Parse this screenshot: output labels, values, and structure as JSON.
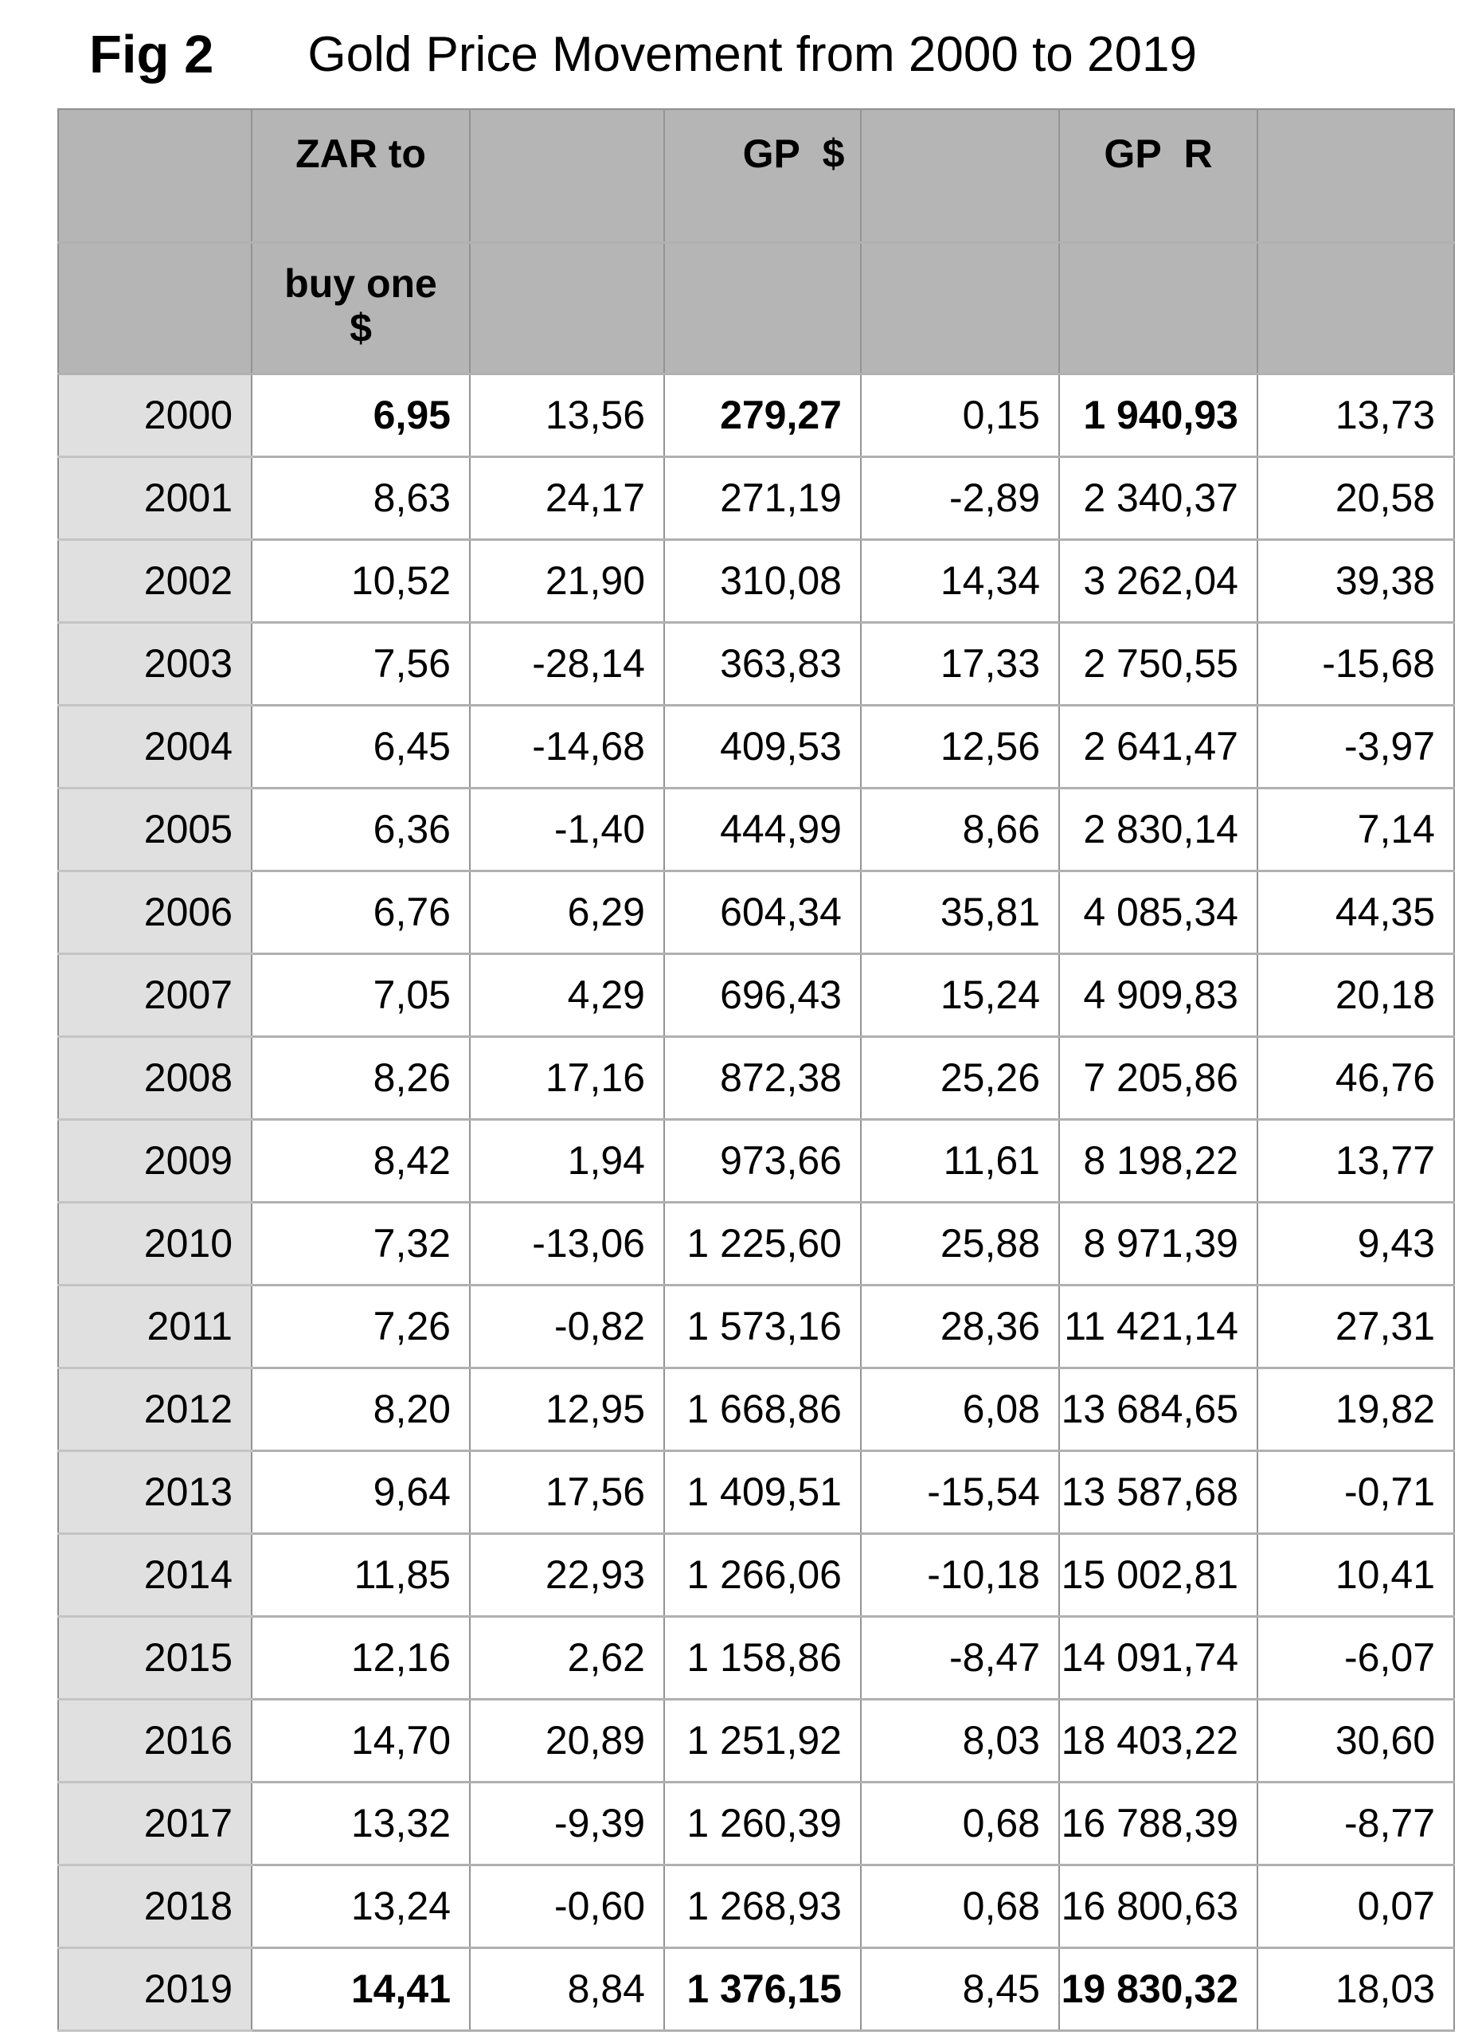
{
  "figure_label": "Fig 2",
  "title": "Gold Price Movement from 2000 to 2019",
  "colors": {
    "header_bg": "#b5b5b5",
    "year_column_bg": "#e0e0e0",
    "grid_vertical": "#939393",
    "grid_horizontal": "#b0b0b0",
    "text": "#000000",
    "page_bg": "#ffffff"
  },
  "table": {
    "header_row1": [
      "",
      "ZAR to",
      "",
      "GP  $",
      "",
      "GP  R",
      ""
    ],
    "header_row2": [
      "",
      "buy one\n$",
      "",
      "",
      "",
      "",
      ""
    ],
    "rows": [
      {
        "year": "2000",
        "cells": [
          "6,95",
          "13,56",
          "279,27",
          "0,15",
          "1 940,93",
          "13,73"
        ],
        "bold_cells": [
          0,
          2,
          4
        ]
      },
      {
        "year": "2001",
        "cells": [
          "8,63",
          "24,17",
          "271,19",
          "-2,89",
          "2 340,37",
          "20,58"
        ],
        "bold_cells": []
      },
      {
        "year": "2002",
        "cells": [
          "10,52",
          "21,90",
          "310,08",
          "14,34",
          "3 262,04",
          "39,38"
        ],
        "bold_cells": []
      },
      {
        "year": "2003",
        "cells": [
          "7,56",
          "-28,14",
          "363,83",
          "17,33",
          "2 750,55",
          "-15,68"
        ],
        "bold_cells": []
      },
      {
        "year": "2004",
        "cells": [
          "6,45",
          "-14,68",
          "409,53",
          "12,56",
          "2 641,47",
          "-3,97"
        ],
        "bold_cells": []
      },
      {
        "year": "2005",
        "cells": [
          "6,36",
          "-1,40",
          "444,99",
          "8,66",
          "2 830,14",
          "7,14"
        ],
        "bold_cells": []
      },
      {
        "year": "2006",
        "cells": [
          "6,76",
          "6,29",
          "604,34",
          "35,81",
          "4 085,34",
          "44,35"
        ],
        "bold_cells": []
      },
      {
        "year": "2007",
        "cells": [
          "7,05",
          "4,29",
          "696,43",
          "15,24",
          "4 909,83",
          "20,18"
        ],
        "bold_cells": []
      },
      {
        "year": "2008",
        "cells": [
          "8,26",
          "17,16",
          "872,38",
          "25,26",
          "7 205,86",
          "46,76"
        ],
        "bold_cells": []
      },
      {
        "year": "2009",
        "cells": [
          "8,42",
          "1,94",
          "973,66",
          "11,61",
          "8 198,22",
          "13,77"
        ],
        "bold_cells": []
      },
      {
        "year": "2010",
        "cells": [
          "7,32",
          "-13,06",
          "1 225,60",
          "25,88",
          "8 971,39",
          "9,43"
        ],
        "bold_cells": []
      },
      {
        "year": "2011",
        "cells": [
          "7,26",
          "-0,82",
          "1 573,16",
          "28,36",
          "11 421,14",
          "27,31"
        ],
        "bold_cells": []
      },
      {
        "year": "2012",
        "cells": [
          "8,20",
          "12,95",
          "1 668,86",
          "6,08",
          "13 684,65",
          "19,82"
        ],
        "bold_cells": []
      },
      {
        "year": "2013",
        "cells": [
          "9,64",
          "17,56",
          "1 409,51",
          "-15,54",
          "13 587,68",
          "-0,71"
        ],
        "bold_cells": []
      },
      {
        "year": "2014",
        "cells": [
          "11,85",
          "22,93",
          "1 266,06",
          "-10,18",
          "15 002,81",
          "10,41"
        ],
        "bold_cells": []
      },
      {
        "year": "2015",
        "cells": [
          "12,16",
          "2,62",
          "1 158,86",
          "-8,47",
          "14 091,74",
          "-6,07"
        ],
        "bold_cells": []
      },
      {
        "year": "2016",
        "cells": [
          "14,70",
          "20,89",
          "1 251,92",
          "8,03",
          "18 403,22",
          "30,60"
        ],
        "bold_cells": []
      },
      {
        "year": "2017",
        "cells": [
          "13,32",
          "-9,39",
          "1 260,39",
          "0,68",
          "16 788,39",
          "-8,77"
        ],
        "bold_cells": []
      },
      {
        "year": "2018",
        "cells": [
          "13,24",
          "-0,60",
          "1 268,93",
          "0,68",
          "16 800,63",
          "0,07"
        ],
        "bold_cells": []
      },
      {
        "year": "2019",
        "cells": [
          "14,41",
          "8,84",
          "1 376,15",
          "8,45",
          "19 830,32",
          "18,03"
        ],
        "bold_cells": [
          0,
          2,
          4
        ]
      }
    ]
  }
}
